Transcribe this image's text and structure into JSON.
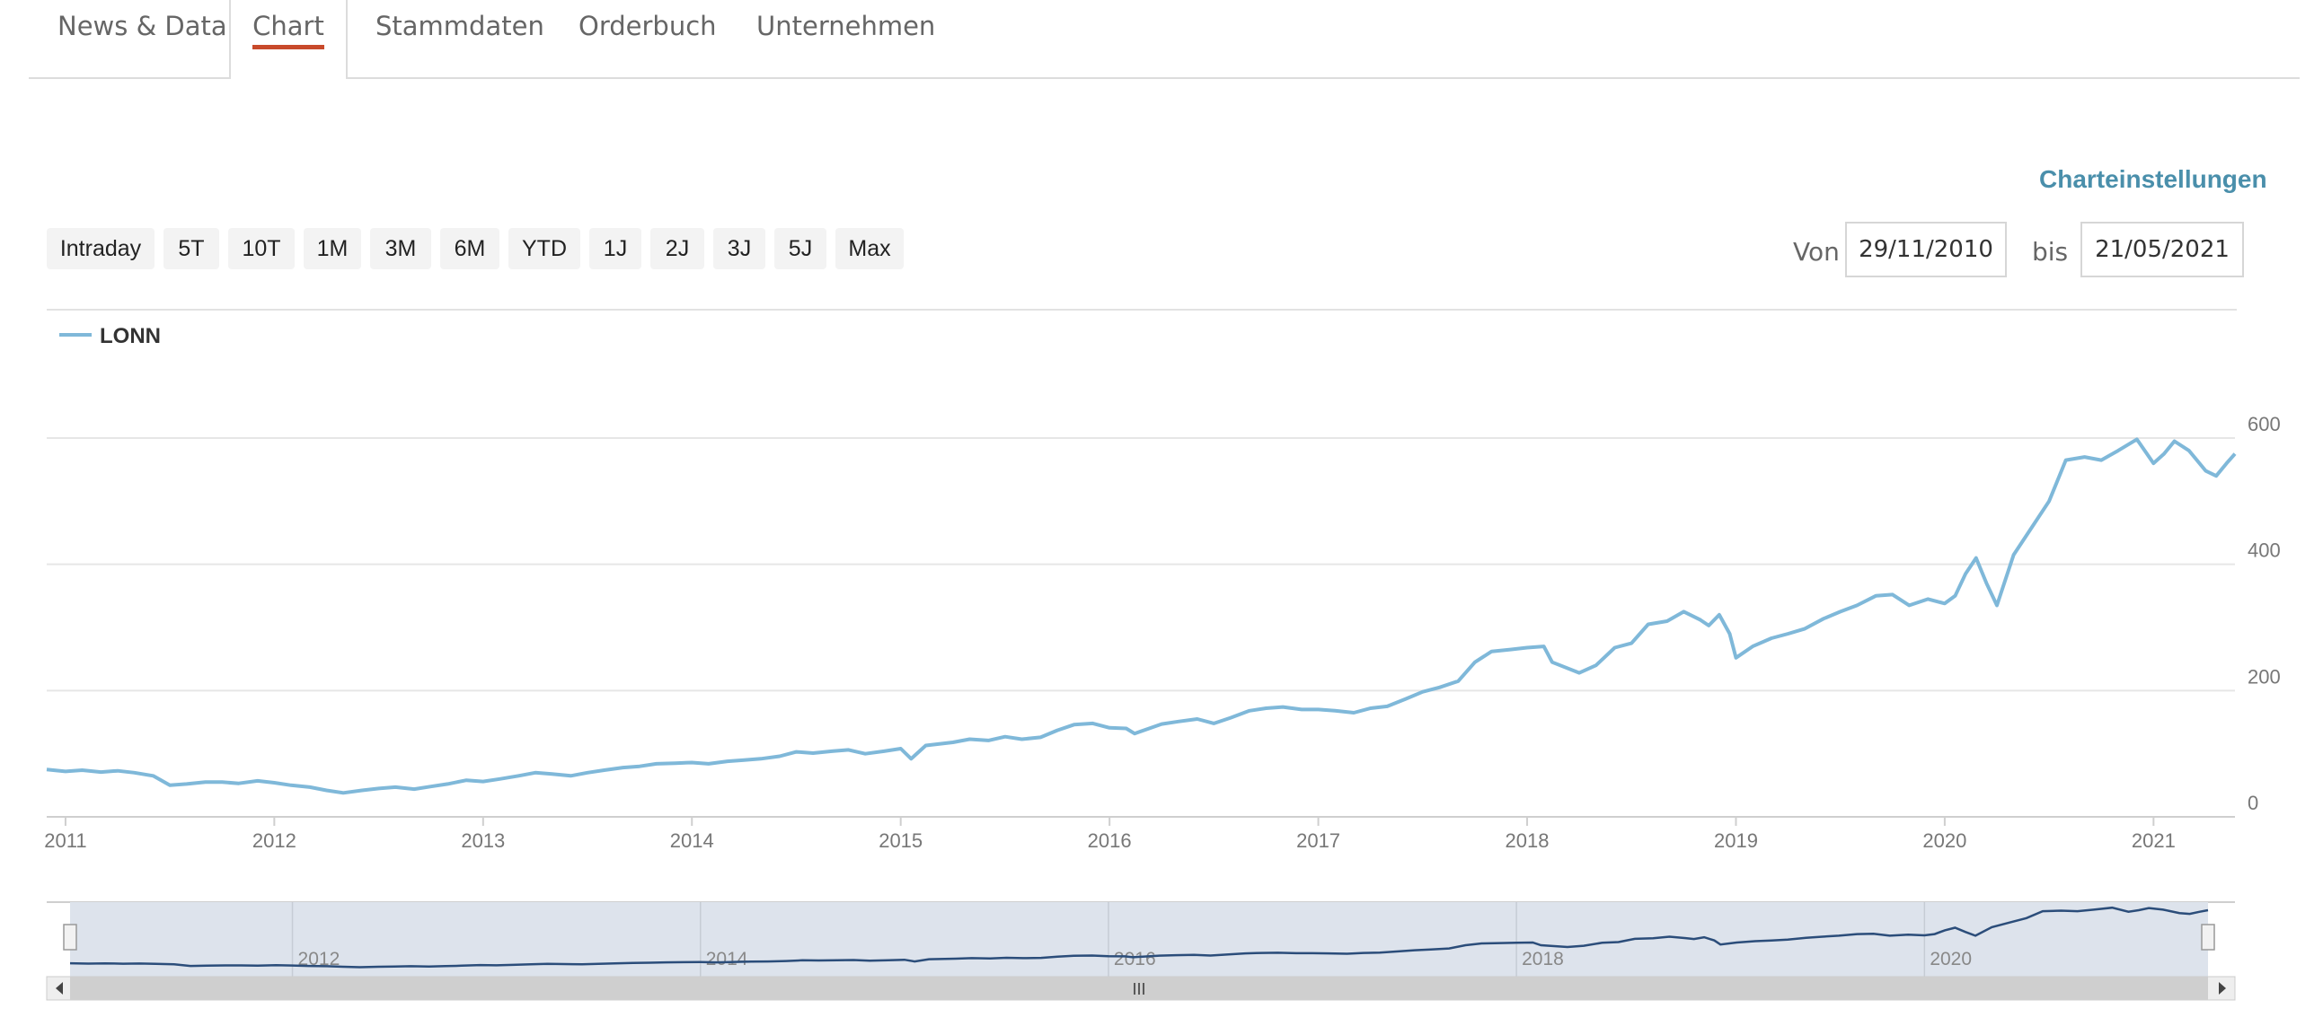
{
  "tabs": [
    {
      "label": "News & Data",
      "active": false
    },
    {
      "label": "Chart",
      "active": true
    },
    {
      "label": "Stammdaten",
      "active": false
    },
    {
      "label": "Orderbuch",
      "active": false
    },
    {
      "label": "Unternehmen",
      "active": false
    }
  ],
  "settings_link": "Charteinstellungen",
  "range_buttons": [
    "Intraday",
    "5T",
    "10T",
    "1M",
    "3M",
    "6M",
    "YTD",
    "1J",
    "2J",
    "3J",
    "5J",
    "Max"
  ],
  "date_range": {
    "from_label": "Von",
    "from_value": "29/11/2010",
    "to_label": "bis",
    "to_value": "21/05/2021"
  },
  "colors": {
    "line": "#7fb8d9",
    "navigator_line": "#2b4d7a",
    "accent": "#c84a2b",
    "link": "#4a8fab"
  },
  "chart_data": {
    "type": "line",
    "legend": [
      {
        "name": "LONN"
      }
    ],
    "x_ticks": [
      "2011",
      "2012",
      "2013",
      "2014",
      "2015",
      "2016",
      "2017",
      "2018",
      "2019",
      "2020",
      "2021"
    ],
    "y_ticks": [
      "0",
      "200",
      "400",
      "600"
    ],
    "ylim": [
      0,
      600
    ],
    "xlim": [
      2010.91,
      2021.39
    ],
    "grid": "horizontal",
    "series": [
      {
        "name": "LONN",
        "x": [
          2010.91,
          2011.0,
          2011.08,
          2011.17,
          2011.25,
          2011.33,
          2011.42,
          2011.5,
          2011.58,
          2011.67,
          2011.75,
          2011.83,
          2011.92,
          2012.0,
          2012.08,
          2012.17,
          2012.25,
          2012.33,
          2012.42,
          2012.5,
          2012.58,
          2012.67,
          2012.75,
          2012.83,
          2012.92,
          2013.0,
          2013.08,
          2013.17,
          2013.25,
          2013.33,
          2013.42,
          2013.5,
          2013.58,
          2013.67,
          2013.75,
          2013.83,
          2013.92,
          2014.0,
          2014.08,
          2014.17,
          2014.25,
          2014.33,
          2014.42,
          2014.5,
          2014.58,
          2014.67,
          2014.75,
          2014.83,
          2014.92,
          2015.0,
          2015.05,
          2015.12,
          2015.25,
          2015.33,
          2015.42,
          2015.5,
          2015.58,
          2015.67,
          2015.75,
          2015.83,
          2015.92,
          2016.0,
          2016.08,
          2016.12,
          2016.25,
          2016.33,
          2016.42,
          2016.5,
          2016.58,
          2016.67,
          2016.75,
          2016.83,
          2016.92,
          2017.0,
          2017.08,
          2017.17,
          2017.25,
          2017.33,
          2017.42,
          2017.5,
          2017.58,
          2017.67,
          2017.75,
          2017.83,
          2017.92,
          2018.0,
          2018.08,
          2018.12,
          2018.25,
          2018.33,
          2018.42,
          2018.5,
          2018.58,
          2018.67,
          2018.75,
          2018.83,
          2018.87,
          2018.92,
          2018.97,
          2019.0,
          2019.08,
          2019.17,
          2019.25,
          2019.33,
          2019.42,
          2019.5,
          2019.58,
          2019.67,
          2019.75,
          2019.83,
          2019.92,
          2020.0,
          2020.05,
          2020.1,
          2020.15,
          2020.2,
          2020.25,
          2020.33,
          2020.42,
          2020.5,
          2020.58,
          2020.67,
          2020.75,
          2020.83,
          2020.92,
          2021.0,
          2021.05,
          2021.1,
          2021.17,
          2021.25,
          2021.3,
          2021.35,
          2021.39
        ],
        "values": [
          75,
          72,
          74,
          71,
          73,
          70,
          65,
          50,
          52,
          55,
          55,
          53,
          57,
          54,
          50,
          47,
          42,
          38,
          42,
          45,
          47,
          44,
          48,
          52,
          58,
          56,
          60,
          65,
          70,
          68,
          65,
          70,
          74,
          78,
          80,
          84,
          85,
          86,
          84,
          88,
          90,
          92,
          96,
          103,
          101,
          104,
          106,
          100,
          104,
          108,
          92,
          113,
          118,
          123,
          121,
          127,
          123,
          126,
          137,
          146,
          148,
          141,
          140,
          132,
          147,
          151,
          155,
          148,
          157,
          168,
          172,
          174,
          170,
          170,
          168,
          165,
          172,
          175,
          187,
          198,
          205,
          215,
          245,
          262,
          265,
          268,
          270,
          245,
          228,
          240,
          268,
          275,
          305,
          310,
          325,
          312,
          303,
          320,
          290,
          252,
          270,
          283,
          290,
          298,
          314,
          325,
          335,
          350,
          352,
          335,
          345,
          338,
          350,
          385,
          410,
          370,
          335,
          415,
          460,
          500,
          565,
          570,
          565,
          580,
          598,
          560,
          575,
          595,
          580,
          548,
          540,
          560,
          575
        ]
      }
    ]
  },
  "navigator": {
    "labels": [
      "2012",
      "2014",
      "2016",
      "2018",
      "2020"
    ],
    "scroll_grip": "III"
  }
}
